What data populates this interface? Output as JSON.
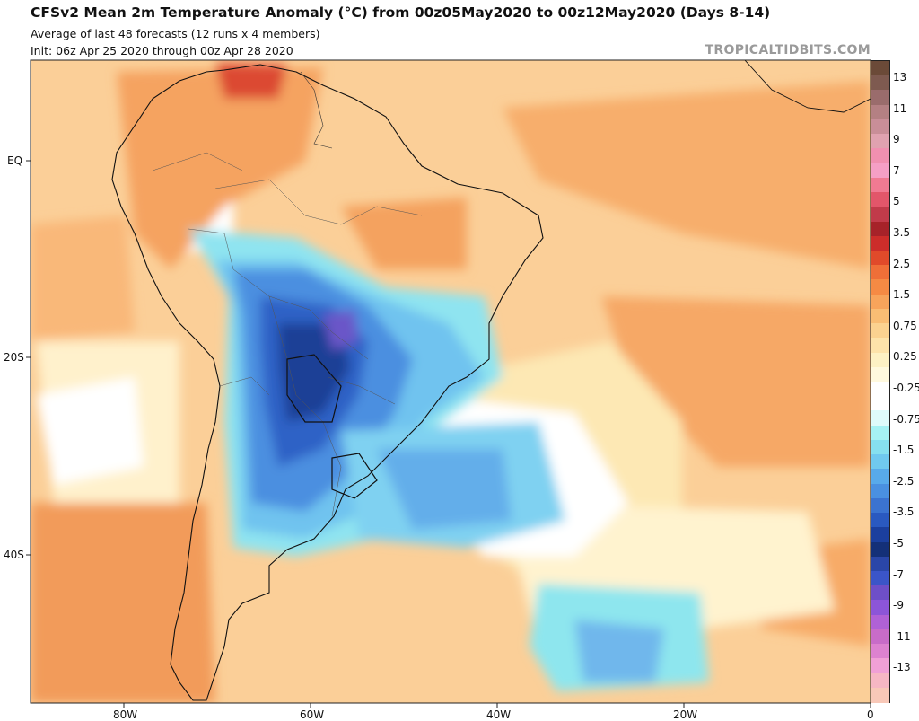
{
  "title": "CFSv2 Mean 2m Temperature Anomaly (°C) from 00z05May2020 to 00z12May2020 (Days 8-14)",
  "subtitle": "Average of last 48 forecasts (12 runs x 4 members)",
  "init": "Init: 06z Apr 25 2020 through 00z Apr 28 2020",
  "brand": "TROPICALTIDBITS.COM",
  "lat_labels": [
    "EQ",
    "20S",
    "40S"
  ],
  "lon_labels": [
    "80W",
    "60W",
    "40W",
    "20W",
    "0"
  ],
  "legend": {
    "labels": [
      "13",
      "11",
      "9",
      "7",
      "5",
      "3.5",
      "2.5",
      "1.5",
      "0.75",
      "0.25",
      "-0.25",
      "-0.75",
      "-1.5",
      "-2.5",
      "-3.5",
      "-5",
      "-7",
      "-9",
      "-11",
      "-13"
    ],
    "colors": [
      "#6b4a38",
      "#7e5a50",
      "#9a6c6c",
      "#b48083",
      "#c98e98",
      "#e0a2b0",
      "#f090b0",
      "#f59fc5",
      "#f07a92",
      "#e2566a",
      "#c13b4a",
      "#a62229",
      "#cc2d2a",
      "#e04a2a",
      "#ef6f38",
      "#f58a44",
      "#f7a45b",
      "#f9bd74",
      "#fbd290",
      "#fde3aa",
      "#fdf1c4",
      "#fff9de",
      "#ffffff",
      "#ffffff",
      "#dffbfb",
      "#a6f2f4",
      "#86e0ef",
      "#70c9ef",
      "#58aaea",
      "#4a90e0",
      "#3b73d0",
      "#2a59c0",
      "#1b3f9e",
      "#143078",
      "#2a46a8",
      "#3b55c8",
      "#6e4fc8",
      "#8c55d8",
      "#b061d6",
      "#c86cc8",
      "#dd82d0",
      "#f0a0d6",
      "#f6b7c4",
      "#f8c8b8"
    ]
  },
  "colors": {
    "ocean_warm": "#fbc98c",
    "land_warm": "#f6a867",
    "cool_core": "#1e4aa0",
    "border": "#111111"
  }
}
